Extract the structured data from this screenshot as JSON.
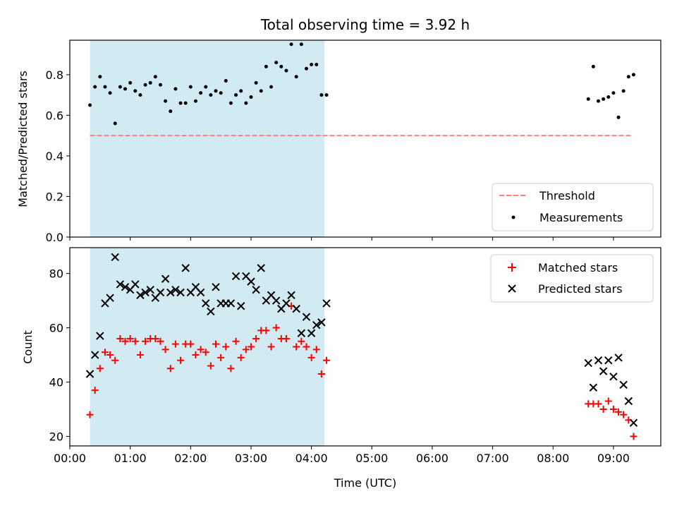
{
  "chart_data": {
    "title": "Total observing time = 3.92 h",
    "xlabel": "Time (UTC)",
    "xlim": [
      "00:00",
      "09:47"
    ],
    "xticks": [
      "00:00",
      "01:00",
      "02:00",
      "03:00",
      "04:00",
      "05:00",
      "06:00",
      "07:00",
      "08:00",
      "09:00"
    ],
    "observing_window": [
      "00:20",
      "04:13"
    ],
    "colors": {
      "shade": "#add8e6",
      "threshold": "#ff7f7f",
      "measurements": "#000000",
      "matched": "#ff0000",
      "predicted": "#000000"
    },
    "panels": [
      {
        "type": "scatter",
        "ylabel": "Matched/Predicted stars",
        "ylim": [
          0,
          0.97
        ],
        "yticks": [
          "0.0",
          "0.2",
          "0.4",
          "0.6",
          "0.8"
        ],
        "legend_position": "lower-right",
        "threshold": {
          "name": "Threshold",
          "value": 0.5,
          "x_range": [
            "00:20",
            "09:17"
          ]
        },
        "series": [
          {
            "name": "Measurements",
            "marker": "dot",
            "points": [
              [
                "00:20",
                0.65
              ],
              [
                "00:25",
                0.74
              ],
              [
                "00:30",
                0.79
              ],
              [
                "00:35",
                0.74
              ],
              [
                "00:40",
                0.71
              ],
              [
                "00:45",
                0.56
              ],
              [
                "00:50",
                0.74
              ],
              [
                "00:55",
                0.73
              ],
              [
                "01:00",
                0.76
              ],
              [
                "01:05",
                0.72
              ],
              [
                "01:10",
                0.7
              ],
              [
                "01:15",
                0.75
              ],
              [
                "01:20",
                0.76
              ],
              [
                "01:25",
                0.79
              ],
              [
                "01:30",
                0.75
              ],
              [
                "01:35",
                0.67
              ],
              [
                "01:40",
                0.62
              ],
              [
                "01:45",
                0.73
              ],
              [
                "01:50",
                0.66
              ],
              [
                "01:55",
                0.66
              ],
              [
                "02:00",
                0.74
              ],
              [
                "02:05",
                0.67
              ],
              [
                "02:10",
                0.71
              ],
              [
                "02:15",
                0.74
              ],
              [
                "02:20",
                0.7
              ],
              [
                "02:25",
                0.72
              ],
              [
                "02:30",
                0.71
              ],
              [
                "02:35",
                0.77
              ],
              [
                "02:40",
                0.66
              ],
              [
                "02:45",
                0.7
              ],
              [
                "02:50",
                0.72
              ],
              [
                "02:55",
                0.66
              ],
              [
                "03:00",
                0.69
              ],
              [
                "03:05",
                0.76
              ],
              [
                "03:10",
                0.72
              ],
              [
                "03:15",
                0.84
              ],
              [
                "03:20",
                0.74
              ],
              [
                "03:25",
                0.86
              ],
              [
                "03:30",
                0.84
              ],
              [
                "03:35",
                0.82
              ],
              [
                "03:40",
                0.95
              ],
              [
                "03:45",
                0.79
              ],
              [
                "03:50",
                0.95
              ],
              [
                "03:55",
                0.83
              ],
              [
                "04:00",
                0.85
              ],
              [
                "04:05",
                0.85
              ],
              [
                "04:10",
                0.7
              ],
              [
                "04:15",
                0.7
              ],
              [
                "08:35",
                0.68
              ],
              [
                "08:40",
                0.84
              ],
              [
                "08:45",
                0.67
              ],
              [
                "08:50",
                0.68
              ],
              [
                "08:55",
                0.69
              ],
              [
                "09:00",
                0.71
              ],
              [
                "09:05",
                0.59
              ],
              [
                "09:10",
                0.72
              ],
              [
                "09:15",
                0.79
              ],
              [
                "09:20",
                0.8
              ]
            ]
          }
        ]
      },
      {
        "type": "scatter",
        "ylabel": "Count",
        "ylim": [
          16.5,
          89.5
        ],
        "yticks": [
          "20",
          "40",
          "60",
          "80"
        ],
        "legend_position": "upper-right",
        "series": [
          {
            "name": "Matched stars",
            "marker": "plus",
            "points": [
              [
                "00:20",
                28
              ],
              [
                "00:25",
                37
              ],
              [
                "00:30",
                45
              ],
              [
                "00:35",
                51
              ],
              [
                "00:40",
                50
              ],
              [
                "00:45",
                48
              ],
              [
                "00:50",
                56
              ],
              [
                "00:55",
                55
              ],
              [
                "01:00",
                56
              ],
              [
                "01:05",
                55
              ],
              [
                "01:10",
                50
              ],
              [
                "01:15",
                55
              ],
              [
                "01:20",
                56
              ],
              [
                "01:25",
                56
              ],
              [
                "01:30",
                55
              ],
              [
                "01:35",
                52
              ],
              [
                "01:40",
                45
              ],
              [
                "01:45",
                54
              ],
              [
                "01:50",
                48
              ],
              [
                "01:55",
                54
              ],
              [
                "02:00",
                54
              ],
              [
                "02:05",
                50
              ],
              [
                "02:10",
                52
              ],
              [
                "02:15",
                51
              ],
              [
                "02:20",
                46
              ],
              [
                "02:25",
                54
              ],
              [
                "02:30",
                49
              ],
              [
                "02:35",
                53
              ],
              [
                "02:40",
                45
              ],
              [
                "02:45",
                55
              ],
              [
                "02:50",
                49
              ],
              [
                "02:55",
                52
              ],
              [
                "03:00",
                53
              ],
              [
                "03:05",
                56
              ],
              [
                "03:10",
                59
              ],
              [
                "03:15",
                59
              ],
              [
                "03:20",
                53
              ],
              [
                "03:25",
                60
              ],
              [
                "03:30",
                56
              ],
              [
                "03:35",
                56
              ],
              [
                "03:40",
                68
              ],
              [
                "03:45",
                53
              ],
              [
                "03:50",
                55
              ],
              [
                "03:55",
                53
              ],
              [
                "04:00",
                49
              ],
              [
                "04:05",
                52
              ],
              [
                "04:10",
                43
              ],
              [
                "04:15",
                48
              ],
              [
                "08:35",
                32
              ],
              [
                "08:40",
                32
              ],
              [
                "08:45",
                32
              ],
              [
                "08:50",
                30
              ],
              [
                "08:55",
                33
              ],
              [
                "09:00",
                30
              ],
              [
                "09:05",
                29
              ],
              [
                "09:10",
                28
              ],
              [
                "09:15",
                26
              ],
              [
                "09:20",
                20
              ]
            ]
          },
          {
            "name": "Predicted stars",
            "marker": "x",
            "points": [
              [
                "00:20",
                43
              ],
              [
                "00:25",
                50
              ],
              [
                "00:30",
                57
              ],
              [
                "00:35",
                69
              ],
              [
                "00:40",
                71
              ],
              [
                "00:45",
                86
              ],
              [
                "00:50",
                76
              ],
              [
                "00:55",
                75
              ],
              [
                "01:00",
                74
              ],
              [
                "01:05",
                76
              ],
              [
                "01:10",
                72
              ],
              [
                "01:15",
                73
              ],
              [
                "01:20",
                74
              ],
              [
                "01:25",
                71
              ],
              [
                "01:30",
                73
              ],
              [
                "01:35",
                78
              ],
              [
                "01:40",
                73
              ],
              [
                "01:45",
                74
              ],
              [
                "01:50",
                73
              ],
              [
                "01:55",
                82
              ],
              [
                "02:00",
                73
              ],
              [
                "02:05",
                75
              ],
              [
                "02:10",
                73
              ],
              [
                "02:15",
                69
              ],
              [
                "02:20",
                66
              ],
              [
                "02:25",
                75
              ],
              [
                "02:30",
                69
              ],
              [
                "02:35",
                69
              ],
              [
                "02:40",
                69
              ],
              [
                "02:45",
                79
              ],
              [
                "02:50",
                68
              ],
              [
                "02:55",
                79
              ],
              [
                "03:00",
                77
              ],
              [
                "03:05",
                74
              ],
              [
                "03:10",
                82
              ],
              [
                "03:15",
                70
              ],
              [
                "03:20",
                72
              ],
              [
                "03:25",
                70
              ],
              [
                "03:30",
                67
              ],
              [
                "03:35",
                69
              ],
              [
                "03:40",
                72
              ],
              [
                "03:45",
                67
              ],
              [
                "03:50",
                58
              ],
              [
                "03:55",
                64
              ],
              [
                "04:00",
                58
              ],
              [
                "04:05",
                61
              ],
              [
                "04:10",
                62
              ],
              [
                "04:15",
                69
              ],
              [
                "08:35",
                47
              ],
              [
                "08:40",
                38
              ],
              [
                "08:45",
                48
              ],
              [
                "08:50",
                44
              ],
              [
                "08:55",
                48
              ],
              [
                "09:00",
                42
              ],
              [
                "09:05",
                49
              ],
              [
                "09:10",
                39
              ],
              [
                "09:15",
                33
              ],
              [
                "09:20",
                25
              ]
            ]
          }
        ]
      }
    ]
  }
}
